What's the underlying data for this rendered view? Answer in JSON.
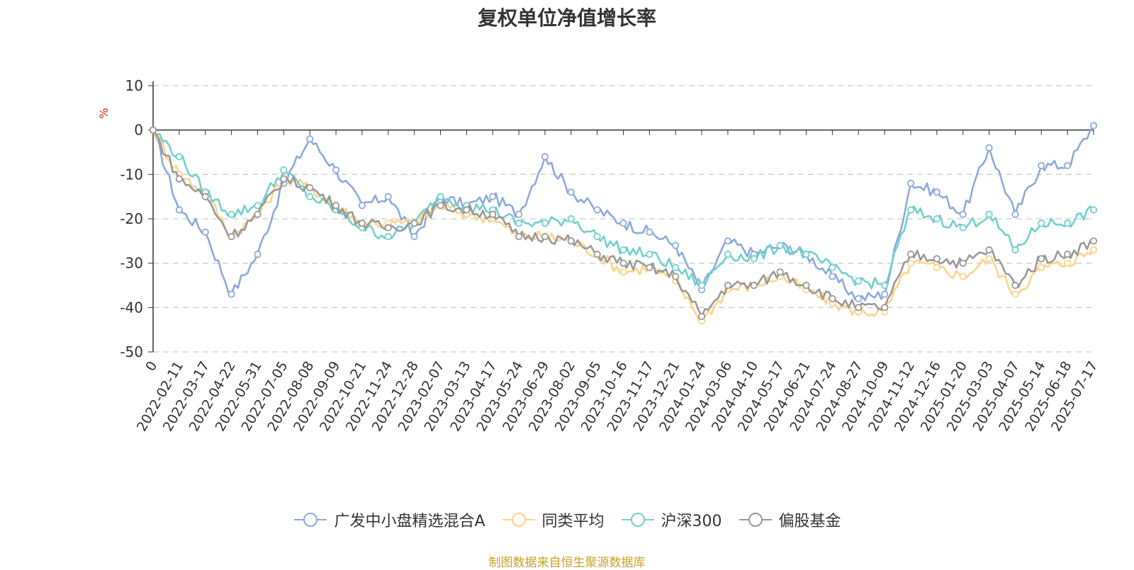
{
  "title": "复权单位净值增长率",
  "source": "制图数据来自恒生聚源数据库",
  "chart_data": {
    "type": "line",
    "ylabel": "%",
    "ylim": [
      -50,
      10
    ],
    "yticks": [
      10,
      0,
      -10,
      -20,
      -30,
      -40,
      -50
    ],
    "grid": true,
    "legend_position": "bottom",
    "x_categories": [
      "0",
      "2022-02-11",
      "2022-03-17",
      "2022-04-22",
      "2022-05-31",
      "2022-07-05",
      "2022-08-08",
      "2022-09-09",
      "2022-10-21",
      "2022-11-24",
      "2022-12-28",
      "2023-02-07",
      "2023-03-13",
      "2023-04-17",
      "2023-05-24",
      "2023-06-29",
      "2023-08-02",
      "2023-09-05",
      "2023-10-16",
      "2023-11-17",
      "2023-12-21",
      "2024-01-24",
      "2024-03-06",
      "2024-04-10",
      "2024-05-17",
      "2024-06-21",
      "2024-07-24",
      "2024-08-27",
      "2024-10-09",
      "2024-11-12",
      "2024-12-16",
      "2025-01-20",
      "2025-03-03",
      "2025-04-07",
      "2025-05-14",
      "2025-06-18",
      "2025-07-17"
    ],
    "series": [
      {
        "name": "广发中小盘精选混合A",
        "color": "#8eaadb",
        "values": [
          0,
          -18,
          -23,
          -37,
          -28,
          -12,
          -2,
          -9,
          -17,
          -15,
          -24,
          -15,
          -17,
          -15,
          -19,
          -6,
          -14,
          -18,
          -21,
          -23,
          -26,
          -36,
          -25,
          -28,
          -26,
          -28,
          -33,
          -38,
          -37,
          -12,
          -14,
          -19,
          -4,
          -19,
          -8,
          -8,
          1
        ]
      },
      {
        "name": "同类平均",
        "color": "#fdd48a",
        "values": [
          0,
          -10,
          -14,
          -24,
          -19,
          -11,
          -13,
          -17,
          -21,
          -21,
          -21,
          -17,
          -19,
          -20,
          -24,
          -24,
          -25,
          -28,
          -32,
          -31,
          -34,
          -43,
          -36,
          -35,
          -33,
          -36,
          -39,
          -41,
          -41,
          -30,
          -31,
          -33,
          -29,
          -37,
          -31,
          -30,
          -27
        ]
      },
      {
        "name": "沪深300",
        "color": "#72d0cf",
        "values": [
          0,
          -6,
          -14,
          -19,
          -17,
          -9,
          -15,
          -18,
          -22,
          -24,
          -21,
          -15,
          -17,
          -18,
          -21,
          -21,
          -20,
          -24,
          -27,
          -28,
          -31,
          -35,
          -28,
          -29,
          -26,
          -28,
          -31,
          -34,
          -35,
          -18,
          -20,
          -22,
          -19,
          -27,
          -21,
          -21,
          -18
        ]
      },
      {
        "name": "偏股基金",
        "color": "#999999",
        "values": [
          0,
          -11,
          -15,
          -24,
          -19,
          -11,
          -13,
          -17,
          -21,
          -22,
          -21,
          -17,
          -18,
          -19,
          -24,
          -24,
          -25,
          -28,
          -30,
          -31,
          -33,
          -42,
          -35,
          -35,
          -32,
          -35,
          -38,
          -40,
          -40,
          -28,
          -29,
          -30,
          -27,
          -35,
          -29,
          -28,
          -25
        ]
      }
    ]
  }
}
